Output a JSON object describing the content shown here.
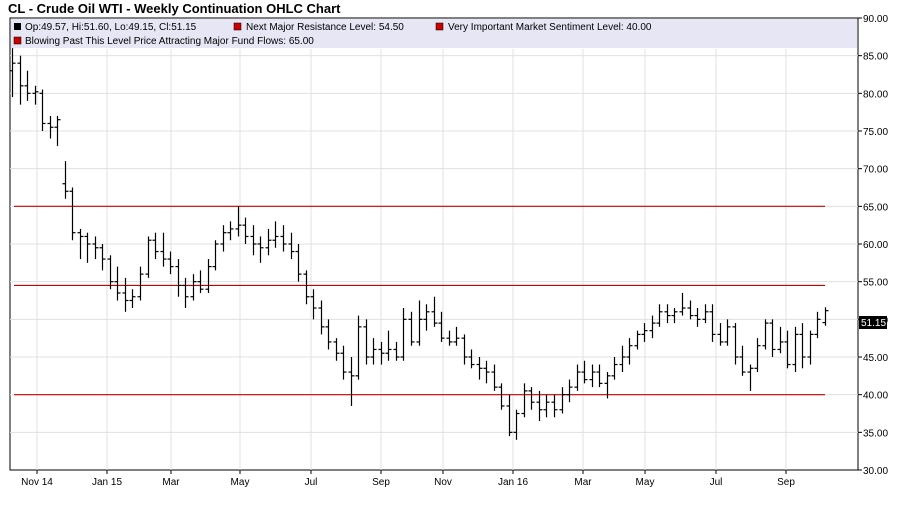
{
  "title": "CL - Crude Oil WTI - Weekly Continuation OHLC Chart",
  "legend": [
    {
      "text": "Op:49.57, Hi:51.60, Lo:49.15, Cl:51.15",
      "color": "#000000"
    },
    {
      "text": "Next Major Resistance Level: 54.50",
      "color": "#cc0000"
    },
    {
      "text": "Very Important Market Sentiment Level: 40.00",
      "color": "#cc0000"
    },
    {
      "text": "Blowing Past This Level Price Attracting Major Fund Flows: 65.00",
      "color": "#cc0000"
    }
  ],
  "chart_data": {
    "type": "ohlc",
    "title": "CL - Crude Oil WTI - Weekly Continuation OHLC Chart",
    "ylim": [
      30,
      90
    ],
    "y_ticks": [
      "30.00",
      "35.00",
      "40.00",
      "45.00",
      "50.00",
      "55.00",
      "60.00",
      "65.00",
      "70.00",
      "75.00",
      "80.00",
      "85.00",
      "90.00"
    ],
    "x_ticks": [
      "Nov 14",
      "Jan 15",
      "Mar",
      "May",
      "Jul",
      "Sep",
      "Nov",
      "Jan 16",
      "Mar",
      "May",
      "Jul",
      "Sep"
    ],
    "grid": true,
    "last_price_label": "51.15",
    "hlines": [
      {
        "value": 65.0,
        "color": "#cc0000"
      },
      {
        "value": 54.5,
        "color": "#cc0000"
      },
      {
        "value": 40.0,
        "color": "#cc0000"
      }
    ],
    "ohlc": [
      [
        83.0,
        86.0,
        79.5,
        84.0
      ],
      [
        84.0,
        85.0,
        78.5,
        81.0
      ],
      [
        81.0,
        83.0,
        79.0,
        80.0
      ],
      [
        80.0,
        81.0,
        78.5,
        80.2
      ],
      [
        80.0,
        80.5,
        75.0,
        76.0
      ],
      [
        76.0,
        77.0,
        74.0,
        75.5
      ],
      [
        75.5,
        77.0,
        73.0,
        76.5
      ],
      [
        68.0,
        71.0,
        66.0,
        67.0
      ],
      [
        67.0,
        67.5,
        60.5,
        61.5
      ],
      [
        61.5,
        62.0,
        58.0,
        61.0
      ],
      [
        61.0,
        61.5,
        57.5,
        60.0
      ],
      [
        60.0,
        61.0,
        58.0,
        59.5
      ],
      [
        59.5,
        60.0,
        56.5,
        58.0
      ],
      [
        58.0,
        58.5,
        54.0,
        55.0
      ],
      [
        55.0,
        57.0,
        52.5,
        53.5
      ],
      [
        53.5,
        55.5,
        51.0,
        52.5
      ],
      [
        52.5,
        54.0,
        51.5,
        53.0
      ],
      [
        53.0,
        57.0,
        52.5,
        56.0
      ],
      [
        56.0,
        61.0,
        55.5,
        60.5
      ],
      [
        60.5,
        61.5,
        58.0,
        59.0
      ],
      [
        59.0,
        61.5,
        57.0,
        58.0
      ],
      [
        58.0,
        59.0,
        56.0,
        57.0
      ],
      [
        57.0,
        58.0,
        53.0,
        54.5
      ],
      [
        54.5,
        55.5,
        51.5,
        53.0
      ],
      [
        53.0,
        56.0,
        52.5,
        55.0
      ],
      [
        55.0,
        56.5,
        53.5,
        54.0
      ],
      [
        54.0,
        58.0,
        53.5,
        57.0
      ],
      [
        57.0,
        60.5,
        56.5,
        60.0
      ],
      [
        60.0,
        62.5,
        59.0,
        61.5
      ],
      [
        61.5,
        63.0,
        60.5,
        62.0
      ],
      [
        62.0,
        65.0,
        61.0,
        62.5
      ],
      [
        62.5,
        63.5,
        60.0,
        61.0
      ],
      [
        61.0,
        62.5,
        58.5,
        60.0
      ],
      [
        60.0,
        61.0,
        57.5,
        59.5
      ],
      [
        59.5,
        62.0,
        58.5,
        60.5
      ],
      [
        60.5,
        63.0,
        59.5,
        61.0
      ],
      [
        61.0,
        62.5,
        59.0,
        60.0
      ],
      [
        60.0,
        61.5,
        58.0,
        59.0
      ],
      [
        59.0,
        60.0,
        55.0,
        56.0
      ],
      [
        56.0,
        56.5,
        52.0,
        53.0
      ],
      [
        53.0,
        54.0,
        50.0,
        51.5
      ],
      [
        51.5,
        52.5,
        48.0,
        49.0
      ],
      [
        49.0,
        50.0,
        46.0,
        47.0
      ],
      [
        47.0,
        47.5,
        44.5,
        45.5
      ],
      [
        45.5,
        46.5,
        42.0,
        43.0
      ],
      [
        43.0,
        45.0,
        38.5,
        42.5
      ],
      [
        42.5,
        50.5,
        42.0,
        49.0
      ],
      [
        49.0,
        50.0,
        44.0,
        45.0
      ],
      [
        45.0,
        47.5,
        44.0,
        46.0
      ],
      [
        46.0,
        47.0,
        44.0,
        45.5
      ],
      [
        45.5,
        48.5,
        44.5,
        46.0
      ],
      [
        46.0,
        47.0,
        44.5,
        45.0
      ],
      [
        45.0,
        51.5,
        44.5,
        50.0
      ],
      [
        50.0,
        51.0,
        46.5,
        47.0
      ],
      [
        47.0,
        52.5,
        46.5,
        50.0
      ],
      [
        50.0,
        52.0,
        48.5,
        51.0
      ],
      [
        51.0,
        53.0,
        49.0,
        49.5
      ],
      [
        49.5,
        51.0,
        47.0,
        47.5
      ],
      [
        47.5,
        48.5,
        46.5,
        47.0
      ],
      [
        47.0,
        49.0,
        46.5,
        47.5
      ],
      [
        47.5,
        48.0,
        44.0,
        45.0
      ],
      [
        45.0,
        46.0,
        43.5,
        44.0
      ],
      [
        44.0,
        45.0,
        42.0,
        43.5
      ],
      [
        43.5,
        44.5,
        41.5,
        43.0
      ],
      [
        43.0,
        44.0,
        40.5,
        41.0
      ],
      [
        41.0,
        41.5,
        38.0,
        38.5
      ],
      [
        38.5,
        40.0,
        34.5,
        35.0
      ],
      [
        35.0,
        38.0,
        34.0,
        37.5
      ],
      [
        37.5,
        41.5,
        37.0,
        40.5
      ],
      [
        40.5,
        41.0,
        38.0,
        39.0
      ],
      [
        39.0,
        40.5,
        36.5,
        38.0
      ],
      [
        38.0,
        40.0,
        37.0,
        39.0
      ],
      [
        39.0,
        40.0,
        37.0,
        38.0
      ],
      [
        38.0,
        41.0,
        37.5,
        40.0
      ],
      [
        40.0,
        42.0,
        39.0,
        41.0
      ],
      [
        41.0,
        44.0,
        40.5,
        43.0
      ],
      [
        43.0,
        44.5,
        41.5,
        42.0
      ],
      [
        42.0,
        44.0,
        41.0,
        43.0
      ],
      [
        43.0,
        44.0,
        41.0,
        41.5
      ],
      [
        41.5,
        43.0,
        39.5,
        42.5
      ],
      [
        42.5,
        45.0,
        42.0,
        44.0
      ],
      [
        44.0,
        46.5,
        43.0,
        45.0
      ],
      [
        45.0,
        47.5,
        44.0,
        46.5
      ],
      [
        46.5,
        48.5,
        46.0,
        48.0
      ],
      [
        48.0,
        49.5,
        47.0,
        48.5
      ],
      [
        48.5,
        50.5,
        47.5,
        49.5
      ],
      [
        49.5,
        52.0,
        49.0,
        51.0
      ],
      [
        51.0,
        52.0,
        49.5,
        50.5
      ],
      [
        50.5,
        51.5,
        49.5,
        51.0
      ],
      [
        51.0,
        53.5,
        50.5,
        51.5
      ],
      [
        51.5,
        52.5,
        50.0,
        50.5
      ],
      [
        50.5,
        51.5,
        49.0,
        50.0
      ],
      [
        50.0,
        52.0,
        49.5,
        51.0
      ],
      [
        51.0,
        52.0,
        47.0,
        48.0
      ],
      [
        48.0,
        49.5,
        46.5,
        47.0
      ],
      [
        47.0,
        50.0,
        46.5,
        49.0
      ],
      [
        49.0,
        49.5,
        44.0,
        45.0
      ],
      [
        45.0,
        46.5,
        42.5,
        43.0
      ],
      [
        43.0,
        44.0,
        40.5,
        43.5
      ],
      [
        43.5,
        47.5,
        43.0,
        46.5
      ],
      [
        46.5,
        50.0,
        46.0,
        49.5
      ],
      [
        49.5,
        50.0,
        45.0,
        46.0
      ],
      [
        46.0,
        49.0,
        45.5,
        47.0
      ],
      [
        47.0,
        48.5,
        43.5,
        44.0
      ],
      [
        44.0,
        49.0,
        43.0,
        48.0
      ],
      [
        48.0,
        49.5,
        43.5,
        45.0
      ],
      [
        45.0,
        48.5,
        44.0,
        48.0
      ],
      [
        48.0,
        51.0,
        47.5,
        50.0
      ],
      [
        49.57,
        51.6,
        49.15,
        51.15
      ]
    ]
  }
}
